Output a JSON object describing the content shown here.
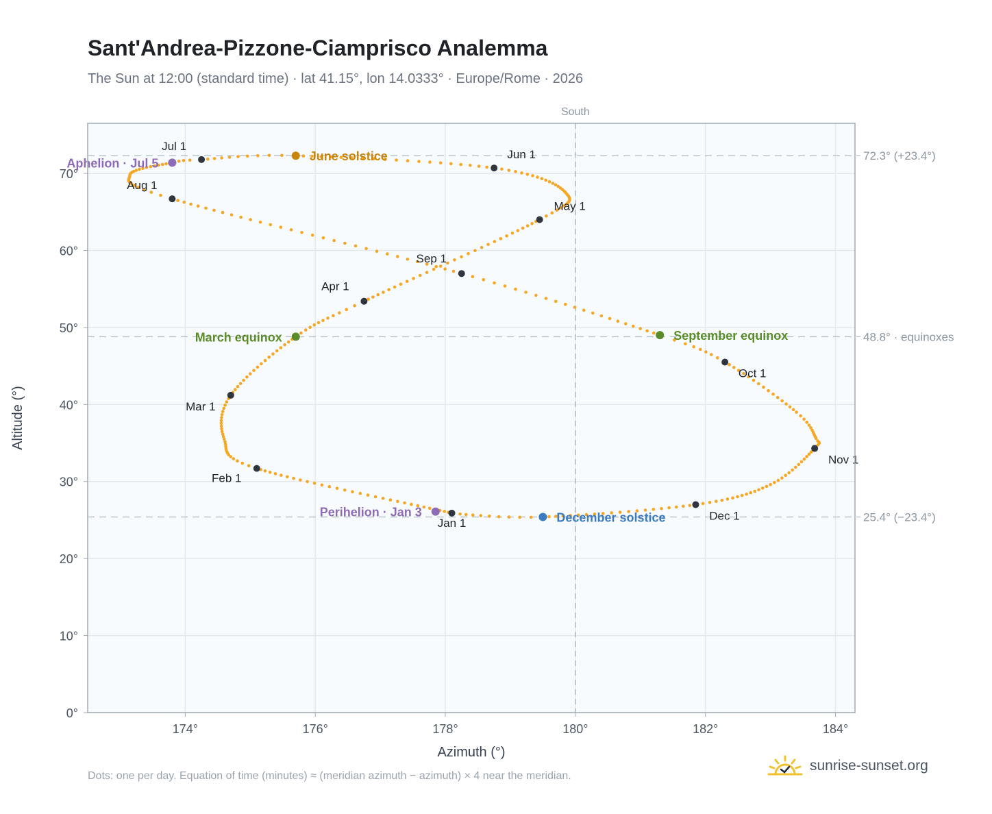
{
  "header": {
    "title": "Sant'Andrea-Pizzone-Ciamprisco Analemma",
    "subtitle": "The Sun at 12:00 (standard time) · lat 41.15°, lon 14.0333° · Europe/Rome · 2026"
  },
  "footer": {
    "note": "Dots: one per day. Equation of time (minutes) ≈ (meridian azimuth − azimuth) × 4 near the meridian.",
    "brand": "sunrise-sunset.org",
    "brand_icon": "sun-check-icon"
  },
  "chart_data": {
    "type": "scatter",
    "xlabel": "Azimuth (°)",
    "ylabel": "Altitude (°)",
    "xlim": [
      172.5,
      184.3
    ],
    "ylim": [
      0,
      76.5
    ],
    "x_ticks": [
      174,
      176,
      178,
      180,
      182,
      184
    ],
    "x_tick_labels": [
      "174°",
      "176°",
      "178°",
      "180°",
      "182°",
      "184°"
    ],
    "y_ticks": [
      0,
      10,
      20,
      30,
      40,
      50,
      60,
      70
    ],
    "y_tick_labels": [
      "0°",
      "10°",
      "20°",
      "30°",
      "40°",
      "50°",
      "60°",
      "70°"
    ],
    "grid": true,
    "meridian": {
      "azimuth": 180,
      "label": "South"
    },
    "reference_lines": [
      {
        "altitude": 72.3,
        "label": "72.3° (+23.4°)"
      },
      {
        "altitude": 48.8,
        "label": "48.8° · equinoxes"
      },
      {
        "altitude": 25.4,
        "label": "25.4° (−23.4°)"
      }
    ],
    "curve_color": "#f5a623",
    "analemma_path": [
      {
        "day": 1,
        "az": 178.1,
        "alt": 25.9
      },
      {
        "day": 32,
        "az": 175.1,
        "alt": 31.7
      },
      {
        "day": 45,
        "az": 174.6,
        "alt": 35.5
      },
      {
        "day": 60,
        "az": 174.7,
        "alt": 41.2
      },
      {
        "day": 79,
        "az": 175.7,
        "alt": 48.8
      },
      {
        "day": 91,
        "az": 176.75,
        "alt": 53.4
      },
      {
        "day": 121,
        "az": 179.45,
        "alt": 64.0
      },
      {
        "day": 135,
        "az": 179.85,
        "alt": 67.5
      },
      {
        "day": 152,
        "az": 178.75,
        "alt": 70.7
      },
      {
        "day": 172,
        "az": 175.7,
        "alt": 72.3
      },
      {
        "day": 182,
        "az": 174.25,
        "alt": 71.8
      },
      {
        "day": 186,
        "az": 173.8,
        "alt": 71.4
      },
      {
        "day": 200,
        "az": 173.15,
        "alt": 69.8
      },
      {
        "day": 213,
        "az": 173.8,
        "alt": 66.7
      },
      {
        "day": 244,
        "az": 178.25,
        "alt": 57.0
      },
      {
        "day": 266,
        "az": 181.3,
        "alt": 49.0
      },
      {
        "day": 274,
        "az": 182.3,
        "alt": 45.5
      },
      {
        "day": 290,
        "az": 183.4,
        "alt": 39.0
      },
      {
        "day": 300,
        "az": 183.7,
        "alt": 35.6
      },
      {
        "day": 305,
        "az": 183.68,
        "alt": 34.3
      },
      {
        "day": 320,
        "az": 183.0,
        "alt": 29.6
      },
      {
        "day": 335,
        "az": 181.85,
        "alt": 27.0
      },
      {
        "day": 355,
        "az": 179.5,
        "alt": 25.4
      },
      {
        "day": 365,
        "az": 178.15,
        "alt": 25.8
      }
    ],
    "month_markers": [
      {
        "label": "Jan 1",
        "az": 178.1,
        "alt": 25.9,
        "lx": 0,
        "ly": 20
      },
      {
        "label": "Feb 1",
        "az": 175.1,
        "alt": 31.7,
        "lx": -44,
        "ly": 20
      },
      {
        "label": "Mar 1",
        "az": 174.7,
        "alt": 41.2,
        "lx": -44,
        "ly": 22
      },
      {
        "label": "Apr 1",
        "az": 176.75,
        "alt": 53.4,
        "lx": -42,
        "ly": -16
      },
      {
        "label": "May 1",
        "az": 179.45,
        "alt": 64.0,
        "lx": 44,
        "ly": -14
      },
      {
        "label": "Jun 1",
        "az": 178.75,
        "alt": 70.7,
        "lx": 40,
        "ly": -14
      },
      {
        "label": "Jul 1",
        "az": 174.25,
        "alt": 71.8,
        "lx": -40,
        "ly": -14
      },
      {
        "label": "Aug 1",
        "az": 173.8,
        "alt": 66.7,
        "lx": -44,
        "ly": -14
      },
      {
        "label": "Sep 1",
        "az": 178.25,
        "alt": 57.0,
        "lx": -44,
        "ly": -16
      },
      {
        "label": "Oct 1",
        "az": 182.3,
        "alt": 45.5,
        "lx": 40,
        "ly": 22
      },
      {
        "label": "Nov 1",
        "az": 183.68,
        "alt": 34.3,
        "lx": 42,
        "ly": 22
      },
      {
        "label": "Dec 1",
        "az": 181.85,
        "alt": 27.0,
        "lx": 42,
        "ly": 22
      }
    ],
    "events": [
      {
        "label": "June solstice",
        "az": 175.7,
        "alt": 72.3,
        "color": "#c8860d",
        "side": "right"
      },
      {
        "label": "March equinox",
        "az": 175.7,
        "alt": 48.8,
        "color": "#5b8c2a",
        "side": "left"
      },
      {
        "label": "September equinox",
        "az": 181.3,
        "alt": 49.0,
        "color": "#5b8c2a",
        "side": "right"
      },
      {
        "label": "December solstice",
        "az": 179.5,
        "alt": 25.4,
        "color": "#3b7bbf",
        "side": "right"
      },
      {
        "label": "Aphelion · Jul 5",
        "az": 173.8,
        "alt": 71.4,
        "color": "#8e6bb7",
        "side": "left"
      },
      {
        "label": "Perihelion · Jan 3",
        "az": 177.85,
        "alt": 26.1,
        "color": "#8e6bb7",
        "side": "left"
      }
    ]
  }
}
